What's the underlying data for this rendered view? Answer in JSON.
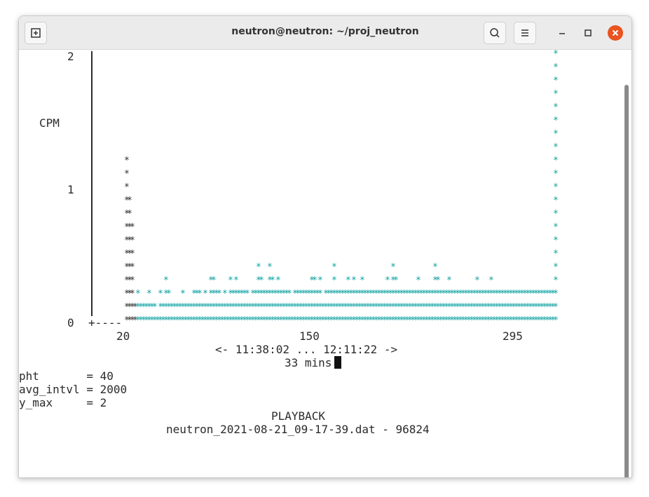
{
  "window": {
    "title": "neutron@neutron: ~/proj_neutron"
  },
  "icons": {
    "new_tab": "new-tab-icon",
    "search": "search-icon",
    "menu": "hamburger-menu-icon",
    "minimize": "minimize-icon",
    "maximize": "maximize-icon",
    "close": "close-icon"
  },
  "colors": {
    "close_button": "#e95420",
    "cyan_series": "#0aa0a0",
    "black_series": "#2b2b2b"
  },
  "terminal": {
    "ylabel": "CPM",
    "y_ticks": [
      "2",
      "1",
      "0"
    ],
    "x_ticks": [
      "20",
      "150",
      "295"
    ],
    "time_range": "<- 11:38:02 ... 12:11:22 ->",
    "duration": "33 mins",
    "params": [
      "pht       = 40",
      "avg_intvl = 2000",
      "y_max     = 2"
    ],
    "mode": "PLAYBACK",
    "file": "neutron_2021-08-21_09-17-39.dat - 96824"
  },
  "chart_data": {
    "type": "bar",
    "ylabel": "CPM",
    "x_ticks": [
      20,
      150,
      295
    ],
    "ylim": [
      0,
      2
    ],
    "grid": false,
    "series": [
      {
        "color": "#2b2b2b",
        "columns": [
          {
            "col": 0,
            "height": 13
          },
          {
            "col": 1,
            "height": 10
          },
          {
            "col": 2,
            "height": 8
          },
          {
            "col": 3,
            "height": 2
          }
        ]
      },
      {
        "color": "#0aa0a0",
        "columns": [
          {
            "col": 4,
            "height": 3
          },
          {
            "col": 5,
            "height": 2
          },
          {
            "col": 6,
            "height": 2
          },
          {
            "col": 7,
            "height": 2
          },
          {
            "col": 8,
            "height": 3
          },
          {
            "col": 9,
            "height": 2
          },
          {
            "col": 10,
            "height": 2
          },
          {
            "col": 11,
            "height": 1
          },
          {
            "col": 12,
            "height": 3
          },
          {
            "col": 13,
            "height": 2
          },
          {
            "col": 14,
            "height": 4
          },
          {
            "col": 15,
            "height": 3
          },
          {
            "col": 16,
            "height": 2
          },
          {
            "col": 17,
            "height": 2
          },
          {
            "col": 18,
            "height": 2
          },
          {
            "col": 19,
            "height": 2
          },
          {
            "col": 20,
            "height": 3
          },
          {
            "col": 21,
            "height": 2
          },
          {
            "col": 22,
            "height": 2
          },
          {
            "col": 23,
            "height": 2
          },
          {
            "col": 24,
            "height": 3
          },
          {
            "col": 25,
            "height": 3
          },
          {
            "col": 26,
            "height": 3
          },
          {
            "col": 27,
            "height": 2
          },
          {
            "col": 28,
            "height": 3
          },
          {
            "col": 29,
            "height": 2
          },
          {
            "col": 30,
            "height": 4
          },
          {
            "col": 31,
            "height": 4
          },
          {
            "col": 32,
            "height": 3
          },
          {
            "col": 33,
            "height": 3
          },
          {
            "col": 34,
            "height": 2
          },
          {
            "col": 35,
            "height": 3
          },
          {
            "col": 36,
            "height": 2
          },
          {
            "col": 37,
            "height": 4
          },
          {
            "col": 38,
            "height": 3
          },
          {
            "col": 39,
            "height": 4
          },
          {
            "col": 40,
            "height": 3
          },
          {
            "col": 41,
            "height": 3
          },
          {
            "col": 42,
            "height": 3
          },
          {
            "col": 43,
            "height": 3
          },
          {
            "col": 44,
            "height": 2
          },
          {
            "col": 45,
            "height": 3
          },
          {
            "col": 46,
            "height": 3
          },
          {
            "col": 47,
            "height": 5
          },
          {
            "col": 48,
            "height": 4
          },
          {
            "col": 49,
            "height": 3
          },
          {
            "col": 50,
            "height": 3
          },
          {
            "col": 51,
            "height": 5
          },
          {
            "col": 52,
            "height": 4
          },
          {
            "col": 53,
            "height": 3
          },
          {
            "col": 54,
            "height": 4
          },
          {
            "col": 55,
            "height": 3
          },
          {
            "col": 56,
            "height": 3
          },
          {
            "col": 57,
            "height": 3
          },
          {
            "col": 58,
            "height": 3
          },
          {
            "col": 59,
            "height": 2
          },
          {
            "col": 60,
            "height": 3
          },
          {
            "col": 61,
            "height": 3
          },
          {
            "col": 62,
            "height": 3
          },
          {
            "col": 63,
            "height": 3
          },
          {
            "col": 64,
            "height": 3
          },
          {
            "col": 65,
            "height": 3
          },
          {
            "col": 66,
            "height": 4
          },
          {
            "col": 67,
            "height": 4
          },
          {
            "col": 68,
            "height": 3
          },
          {
            "col": 69,
            "height": 4
          },
          {
            "col": 70,
            "height": 2
          },
          {
            "col": 71,
            "height": 3
          },
          {
            "col": 72,
            "height": 3
          },
          {
            "col": 73,
            "height": 3
          },
          {
            "col": 74,
            "height": 5
          },
          {
            "col": 75,
            "height": 3
          },
          {
            "col": 76,
            "height": 3
          },
          {
            "col": 77,
            "height": 3
          },
          {
            "col": 78,
            "height": 3
          },
          {
            "col": 79,
            "height": 4
          },
          {
            "col": 80,
            "height": 3
          },
          {
            "col": 81,
            "height": 4
          },
          {
            "col": 82,
            "height": 3
          },
          {
            "col": 83,
            "height": 3
          },
          {
            "col": 84,
            "height": 4
          },
          {
            "col": 85,
            "height": 3
          },
          {
            "col": 86,
            "height": 3
          },
          {
            "col": 87,
            "height": 3
          },
          {
            "col": 88,
            "height": 3
          },
          {
            "col": 89,
            "height": 3
          },
          {
            "col": 90,
            "height": 3
          },
          {
            "col": 91,
            "height": 3
          },
          {
            "col": 92,
            "height": 3
          },
          {
            "col": 93,
            "height": 4
          },
          {
            "col": 94,
            "height": 3
          },
          {
            "col": 95,
            "height": 5
          },
          {
            "col": 96,
            "height": 4
          },
          {
            "col": 97,
            "height": 3
          },
          {
            "col": 98,
            "height": 3
          },
          {
            "col": 99,
            "height": 3
          },
          {
            "col": 100,
            "height": 3
          },
          {
            "col": 101,
            "height": 3
          },
          {
            "col": 102,
            "height": 3
          },
          {
            "col": 103,
            "height": 3
          },
          {
            "col": 104,
            "height": 4
          },
          {
            "col": 105,
            "height": 3
          },
          {
            "col": 106,
            "height": 3
          },
          {
            "col": 107,
            "height": 3
          },
          {
            "col": 108,
            "height": 3
          },
          {
            "col": 109,
            "height": 3
          },
          {
            "col": 110,
            "height": 5
          },
          {
            "col": 111,
            "height": 4
          },
          {
            "col": 112,
            "height": 3
          },
          {
            "col": 113,
            "height": 3
          },
          {
            "col": 114,
            "height": 3
          },
          {
            "col": 115,
            "height": 4
          },
          {
            "col": 116,
            "height": 3
          },
          {
            "col": 117,
            "height": 3
          },
          {
            "col": 118,
            "height": 3
          },
          {
            "col": 119,
            "height": 3
          },
          {
            "col": 120,
            "height": 3
          },
          {
            "col": 121,
            "height": 3
          },
          {
            "col": 122,
            "height": 3
          },
          {
            "col": 123,
            "height": 3
          },
          {
            "col": 124,
            "height": 3
          },
          {
            "col": 125,
            "height": 4
          },
          {
            "col": 126,
            "height": 3
          },
          {
            "col": 127,
            "height": 3
          },
          {
            "col": 128,
            "height": 3
          },
          {
            "col": 129,
            "height": 3
          },
          {
            "col": 130,
            "height": 4
          },
          {
            "col": 131,
            "height": 3
          },
          {
            "col": 132,
            "height": 3
          },
          {
            "col": 133,
            "height": 3
          },
          {
            "col": 134,
            "height": 3
          },
          {
            "col": 135,
            "height": 3
          },
          {
            "col": 136,
            "height": 3
          },
          {
            "col": 137,
            "height": 3
          },
          {
            "col": 138,
            "height": 3
          },
          {
            "col": 139,
            "height": 3
          },
          {
            "col": 140,
            "height": 3
          },
          {
            "col": 141,
            "height": 3
          },
          {
            "col": 142,
            "height": 3
          },
          {
            "col": 143,
            "height": 3
          },
          {
            "col": 144,
            "height": 3
          },
          {
            "col": 145,
            "height": 3
          },
          {
            "col": 146,
            "height": 3
          },
          {
            "col": 147,
            "height": 3
          },
          {
            "col": 148,
            "height": 3
          },
          {
            "col": 149,
            "height": 3
          },
          {
            "col": 150,
            "height": 3
          },
          {
            "col": 151,
            "height": 3
          },
          {
            "col": 152,
            "height": 3
          },
          {
            "col": 153,
            "height": 21
          }
        ]
      }
    ]
  }
}
